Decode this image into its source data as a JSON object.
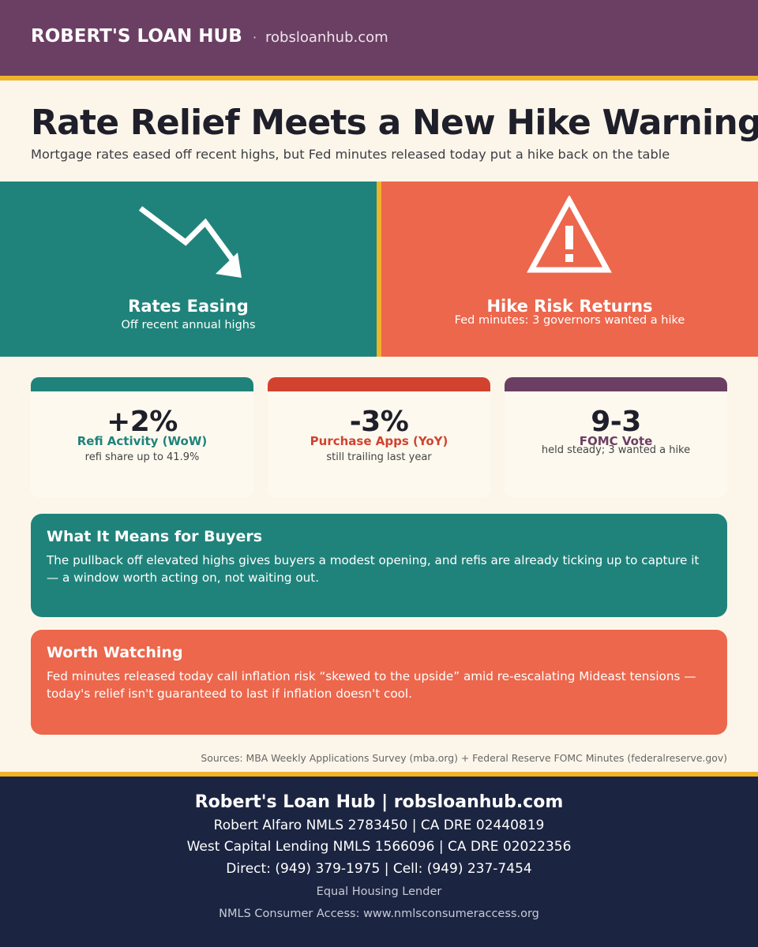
{
  "header": {
    "brand": "ROBERT'S LOAN HUB",
    "separator": "·",
    "url": "robsloanhub.com"
  },
  "headline": {
    "title": "Rate Relief Meets a New Hike Warning",
    "subtitle": "Mortgage rates eased off recent highs, but Fed minutes released today put a hike back on the table"
  },
  "hero": {
    "left": {
      "icon": "trend-down-arrow-icon",
      "title": "Rates Easing",
      "subtitle": "Off recent annual highs",
      "color": "#1f837b"
    },
    "right": {
      "icon": "warning-triangle-icon",
      "title": "Hike Risk Returns",
      "subtitle": "Fed minutes: 3 governors wanted a hike",
      "color": "#ec674c"
    }
  },
  "stats": [
    {
      "value": "+2%",
      "label": "Refi Activity (WoW)",
      "note": "refi share up to 41.9%",
      "color": "#1f837b"
    },
    {
      "value": "-3%",
      "label": "Purchase Apps (YoY)",
      "note": "still trailing last year",
      "color": "#d1432f"
    },
    {
      "value": "9-3",
      "label": "FOMC Vote",
      "note": "held steady; 3 wanted a hike",
      "color": "#6b3f63"
    }
  ],
  "panels": {
    "buyers": {
      "title": "What It Means for Buyers",
      "body": "The pullback off elevated highs gives buyers a modest opening, and refis are already ticking up to capture it — a window worth acting on, not waiting out.",
      "color": "#1f837b"
    },
    "watching": {
      "title": "Worth Watching",
      "body": "Fed minutes released today call inflation risk “skewed to the upside” amid re-escalating Mideast tensions — today's relief isn't guaranteed to last if inflation doesn't cool.",
      "color": "#ec674c"
    }
  },
  "sources": "Sources: MBA Weekly Applications Survey (mba.org) + Federal Reserve FOMC Minutes (federalreserve.gov)",
  "footer": {
    "line1": "Robert's Loan Hub | robsloanhub.com",
    "line2": "Robert Alfaro   NMLS 2783450   |   CA DRE 02440819",
    "line3": "West Capital Lending   NMLS 1566096   |   CA DRE 02022356",
    "line4": "Direct: (949) 379-1975   |   Cell: (949) 237-7454",
    "line5": "Equal Housing Lender",
    "line6": "NMLS Consumer Access: www.nmlsconsumeraccess.org"
  },
  "colors": {
    "purple": "#6b3f63",
    "gold": "#f0b429",
    "teal": "#1f837b",
    "coral": "#ec674c",
    "navy": "#1b2440"
  }
}
